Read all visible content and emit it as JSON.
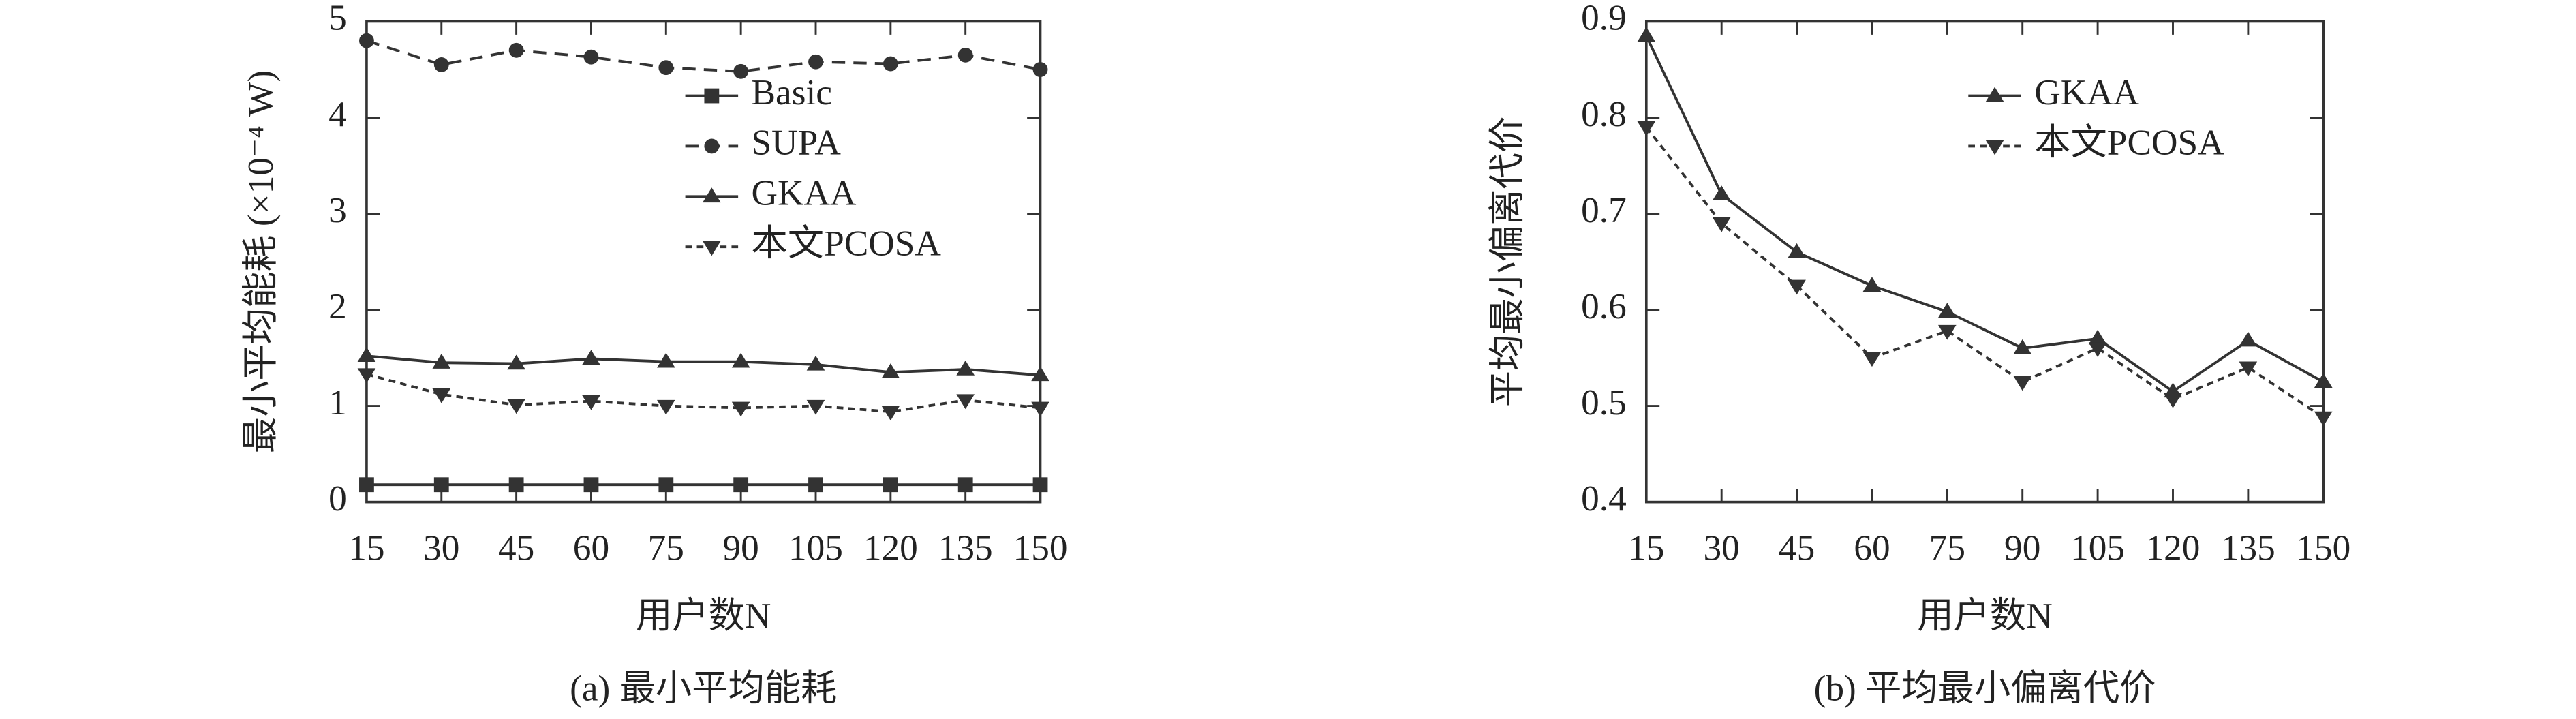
{
  "chart_data": [
    {
      "type": "line",
      "caption": "(a) 最小平均能耗",
      "xlabel": "用户数N",
      "ylabel": "最小平均能耗 (×10⁻⁴ W)",
      "x": [
        15,
        30,
        45,
        60,
        75,
        90,
        105,
        120,
        135,
        150
      ],
      "xlim": [
        15,
        150
      ],
      "xticks": [
        15,
        30,
        45,
        60,
        75,
        90,
        105,
        120,
        135,
        150
      ],
      "ylim": [
        0,
        5
      ],
      "yticks": [
        0,
        1,
        2,
        3,
        4,
        5
      ],
      "legend": "upper right",
      "series": [
        {
          "name": "Basic",
          "color": "#333333",
          "marker": "square",
          "dash": "solid",
          "values": [
            0.18,
            0.18,
            0.18,
            0.18,
            0.18,
            0.18,
            0.18,
            0.18,
            0.18,
            0.18
          ]
        },
        {
          "name": "SUPA",
          "color": "#333333",
          "marker": "circle",
          "dash": "dashed",
          "values": [
            4.8,
            4.55,
            4.7,
            4.63,
            4.52,
            4.48,
            4.58,
            4.56,
            4.65,
            4.5
          ]
        },
        {
          "name": "GKAA",
          "color": "#333333",
          "marker": "triangle-up",
          "dash": "solid",
          "values": [
            1.52,
            1.45,
            1.44,
            1.49,
            1.46,
            1.46,
            1.43,
            1.35,
            1.38,
            1.32
          ]
        },
        {
          "name": "本文PCOSA",
          "color": "#333333",
          "marker": "triangle-down",
          "dash": "dotted",
          "values": [
            1.33,
            1.12,
            1.01,
            1.05,
            1.0,
            0.98,
            1.0,
            0.94,
            1.06,
            0.98
          ]
        }
      ]
    },
    {
      "type": "line",
      "caption": "(b) 平均最小偏离代价",
      "xlabel": "用户数N",
      "ylabel": "平均最小偏离代价",
      "x": [
        15,
        30,
        45,
        60,
        75,
        90,
        105,
        120,
        135,
        150
      ],
      "xlim": [
        15,
        150
      ],
      "xticks": [
        15,
        30,
        45,
        60,
        75,
        90,
        105,
        120,
        135,
        150
      ],
      "ylim": [
        0.4,
        0.9
      ],
      "yticks": [
        0.4,
        0.5,
        0.6,
        0.7,
        0.8,
        0.9
      ],
      "legend": "upper right",
      "series": [
        {
          "name": "GKAA",
          "color": "#333333",
          "marker": "triangle-up",
          "dash": "solid",
          "values": [
            0.885,
            0.72,
            0.66,
            0.625,
            0.598,
            0.56,
            0.57,
            0.515,
            0.568,
            0.525
          ]
        },
        {
          "name": "本文PCOSA",
          "color": "#333333",
          "marker": "triangle-down",
          "dash": "dotted",
          "values": [
            0.79,
            0.69,
            0.625,
            0.55,
            0.578,
            0.525,
            0.56,
            0.507,
            0.54,
            0.488
          ]
        }
      ]
    }
  ]
}
